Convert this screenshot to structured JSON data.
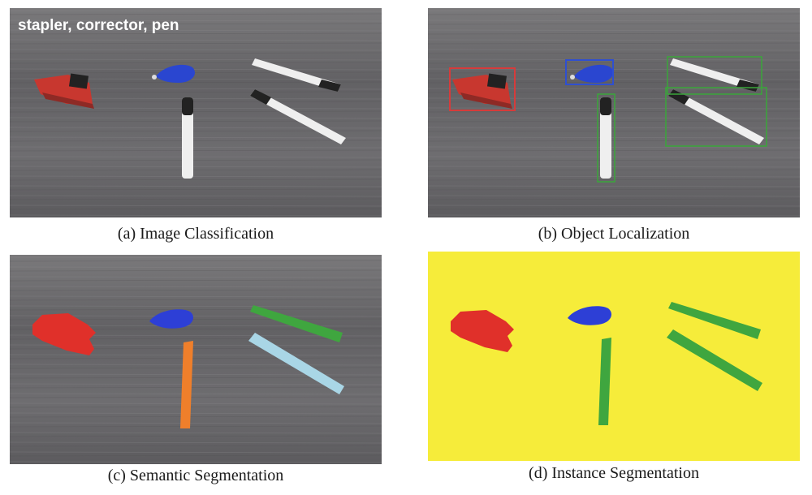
{
  "panels": [
    {
      "id": "a",
      "caption": "(a) Image Classification",
      "overlay_text": "stapler, corrector, pen"
    },
    {
      "id": "b",
      "caption": "(b) Object Localization"
    },
    {
      "id": "c",
      "caption": "(c) Semantic Segmentation"
    },
    {
      "id": "d",
      "caption": "(d) Instance Segmentation"
    }
  ],
  "colors": {
    "wood": "#6b6b6d",
    "stapler_box": "#d63b3b",
    "corrector_box": "#2f4fd0",
    "pen_box": "#3aa63a",
    "seg_stapler": "#e0302a",
    "seg_corrector": "#2d3fd6",
    "seg_pen_green": "#3fa63f",
    "seg_pen_orange": "#ef7f2b",
    "seg_pen_lightblue": "#a9d6e6",
    "instance_background": "#f6ec3a"
  }
}
